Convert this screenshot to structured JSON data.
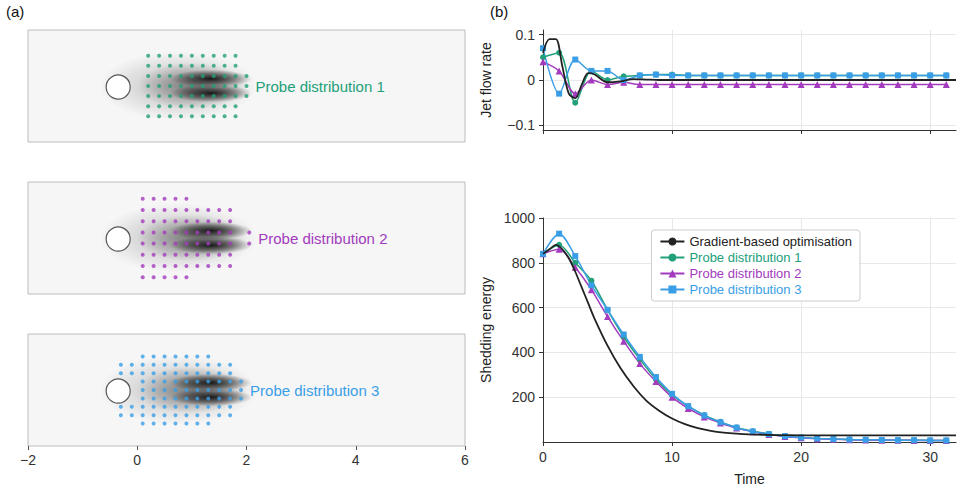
{
  "chart_data": [
    {
      "type": "scatter",
      "panel": "(a)",
      "xlim": [
        -2,
        6
      ],
      "xticks": [
        {
          "value": -2,
          "label": "−2"
        },
        0,
        2,
        4,
        6
      ],
      "ylim": [
        -1,
        1
      ],
      "tick_labels": "x",
      "grid": false,
      "cylinder": {
        "x": -0.35,
        "y": 0,
        "r": 0.22
      },
      "wake": [
        {
          "x": 0.75,
          "y": 0,
          "rx": 1.45,
          "ry": 0.62,
          "magnitude": 0.22
        },
        {
          "x": 1.0,
          "y": 0,
          "rx": 1.0,
          "ry": 0.42,
          "magnitude": 0.35
        },
        {
          "x": 1.35,
          "y": 0.13,
          "rx": 0.75,
          "ry": 0.16,
          "magnitude": 0.85
        },
        {
          "x": 1.35,
          "y": -0.13,
          "rx": 0.75,
          "ry": 0.16,
          "magnitude": 0.85
        }
      ],
      "series": [
        {
          "name": "Probe distribution 1",
          "color": "#22a07a",
          "marker": "circle",
          "probes": [
            {
              "y": -0.54,
              "x": [
                0.2,
                0.4,
                0.6,
                0.8,
                1.0,
                1.2,
                1.4,
                1.6,
                1.8
              ]
            },
            {
              "y": -0.36,
              "x": [
                0.2,
                0.4,
                0.6,
                0.8,
                1.0,
                1.2,
                1.4,
                1.6,
                1.8
              ]
            },
            {
              "y": -0.18,
              "x": [
                0.2,
                0.4,
                0.6,
                0.8,
                1.0,
                1.2,
                1.4,
                1.6,
                1.8,
                2.0
              ]
            },
            {
              "y": 0,
              "x": [
                0.2,
                0.4,
                0.6,
                0.8,
                1.0,
                1.2,
                1.4,
                1.6,
                1.8,
                2.0
              ]
            },
            {
              "y": 0.18,
              "x": [
                0.2,
                0.4,
                0.6,
                0.8,
                1.0,
                1.2,
                1.4,
                1.6,
                1.8,
                2.0
              ]
            },
            {
              "y": 0.36,
              "x": [
                0.2,
                0.4,
                0.6,
                0.8,
                1.0,
                1.2,
                1.4,
                1.6,
                1.8
              ]
            },
            {
              "y": 0.54,
              "x": [
                0.2,
                0.4,
                0.6,
                0.8,
                1.0,
                1.2,
                1.4,
                1.6,
                1.8
              ]
            }
          ]
        },
        {
          "name": "Probe distribution 2",
          "color": "#a23bbd",
          "marker": "circle",
          "probes": [
            {
              "y": -0.7,
              "x": [
                0.1,
                0.3,
                0.5,
                0.7,
                0.9
              ]
            },
            {
              "y": -0.5,
              "x": [
                0.1,
                0.3,
                0.5,
                0.7,
                0.9,
                1.1,
                1.3,
                1.5,
                1.7
              ]
            },
            {
              "y": -0.3,
              "x": [
                0.1,
                0.3,
                0.5,
                0.7,
                0.9,
                1.1,
                1.3,
                1.5,
                1.7
              ]
            },
            {
              "y": -0.1,
              "x": [
                0.1,
                0.3,
                0.5,
                0.7,
                0.9,
                1.1,
                1.3,
                1.5,
                1.7,
                2.05
              ]
            },
            {
              "y": 0.1,
              "x": [
                0.1,
                0.3,
                0.5,
                0.7,
                0.9,
                1.1,
                1.3,
                1.5,
                1.7,
                2.05
              ]
            },
            {
              "y": 0.3,
              "x": [
                0.1,
                0.3,
                0.5,
                0.7,
                0.9,
                1.1,
                1.3,
                1.5,
                1.7
              ]
            },
            {
              "y": 0.5,
              "x": [
                0.1,
                0.3,
                0.5,
                0.7,
                0.9,
                1.1,
                1.3,
                1.5,
                1.7
              ]
            },
            {
              "y": 0.7,
              "x": [
                0.1,
                0.3,
                0.5,
                0.7,
                0.9
              ]
            }
          ]
        },
        {
          "name": "Probe distribution 3",
          "color": "#3a9ee6",
          "marker": "circle",
          "probes": [
            {
              "y": -0.6,
              "x": [
                0.1,
                0.3,
                0.5,
                0.7,
                0.9,
                1.1,
                1.3
              ]
            },
            {
              "y": -0.45,
              "x": [
                -0.3,
                -0.1,
                0.1,
                0.3,
                0.5,
                0.7,
                0.9,
                1.1,
                1.3,
                1.5,
                1.7
              ]
            },
            {
              "y": -0.3,
              "x": [
                -0.3,
                -0.1,
                0.1,
                0.3,
                0.5,
                0.7,
                0.9,
                1.1,
                1.3,
                1.5,
                1.7
              ]
            },
            {
              "y": -0.15,
              "x": [
                0.1,
                0.3,
                0.5,
                0.7,
                0.9,
                1.1,
                1.3,
                1.5,
                1.7,
                1.9
              ]
            },
            {
              "y": 0,
              "x": [
                0.1,
                0.3,
                0.5,
                0.7,
                0.9,
                1.1,
                1.3,
                1.5,
                1.7,
                1.9
              ]
            },
            {
              "y": 0.15,
              "x": [
                0.1,
                0.3,
                0.5,
                0.7,
                0.9,
                1.1,
                1.3,
                1.5,
                1.7,
                1.9
              ]
            },
            {
              "y": 0.3,
              "x": [
                -0.3,
                -0.1,
                0.1,
                0.3,
                0.5,
                0.7,
                0.9,
                1.1,
                1.3,
                1.5,
                1.7
              ]
            },
            {
              "y": 0.45,
              "x": [
                -0.3,
                -0.1,
                0.1,
                0.3,
                0.5,
                0.7,
                0.9,
                1.1,
                1.3,
                1.5,
                1.7
              ]
            },
            {
              "y": 0.6,
              "x": [
                0.1,
                0.3,
                0.5,
                0.7,
                0.9,
                1.1,
                1.3
              ]
            }
          ]
        }
      ]
    },
    {
      "type": "line",
      "panel": "(b)",
      "xlabel": "Time",
      "xlim": [
        0,
        32
      ],
      "xticks": [
        0,
        10,
        20,
        30
      ],
      "grid": true,
      "legend": "upper right",
      "subplots": [
        {
          "ylabel": "Jet flow rate",
          "ylim": [
            -0.11,
            0.11
          ],
          "yticks": [
            {
              "value": -0.1,
              "label": "−0.1"
            },
            0,
            0.1
          ],
          "tick_labels": "y"
        },
        {
          "ylabel": "Shedding energy",
          "ylim": [
            0,
            1000
          ],
          "yticks": [
            200,
            400,
            600,
            800,
            1000
          ]
        }
      ],
      "series": [
        {
          "name": "Gradient-based optimisation",
          "color": "#222222",
          "marker": "none",
          "x": [
            0,
            0.5,
            1,
            1.5,
            2,
            2.5,
            3,
            3.5,
            4,
            5,
            6,
            7,
            8,
            9,
            10,
            11,
            12,
            13,
            14,
            15,
            16,
            18,
            20,
            22,
            24,
            26,
            28,
            30,
            32
          ],
          "values": {
            "Jet flow rate": [
              0.06,
              0.09,
              0.09,
              0.03,
              -0.03,
              -0.04,
              -0.01,
              0.015,
              0.012,
              -0.005,
              -0.003,
              0.002,
              0.001,
              0,
              0,
              0,
              0,
              0,
              0,
              0,
              0,
              0,
              0,
              0,
              0,
              0,
              0,
              0,
              0
            ],
            "Shedding energy": [
              840,
              860,
              880,
              860,
              820,
              760,
              690,
              620,
              550,
              430,
              330,
              250,
              185,
              140,
              105,
              80,
              62,
              50,
              42,
              37,
              34,
              31,
              30,
              30,
              30,
              30,
              30,
              30,
              30
            ]
          }
        },
        {
          "name": "Probe distribution 1",
          "color": "#22a07a",
          "marker": "circle",
          "x": [
            0,
            1.25,
            2.5,
            3.75,
            5,
            6.25,
            7.5,
            8.75,
            10,
            11.25,
            12.5,
            13.75,
            15,
            16.25,
            17.5,
            18.75,
            20,
            21.25,
            22.5,
            23.75,
            25,
            26.25,
            27.5,
            28.75,
            30,
            31.25
          ],
          "values": {
            "Jet flow rate": [
              0.05,
              0.06,
              -0.05,
              0.02,
              0,
              0.008,
              0.01,
              0.012,
              0.012,
              0.01,
              0.01,
              0.01,
              0.01,
              0.01,
              0.01,
              0.01,
              0.01,
              0.01,
              0.01,
              0.01,
              0.01,
              0.01,
              0.01,
              0.01,
              0.01,
              0.01
            ],
            "Shedding energy": [
              840,
              880,
              800,
              720,
              590,
              470,
              370,
              280,
              210,
              160,
              120,
              90,
              65,
              48,
              36,
              26,
              20,
              16,
              13,
              11,
              10,
              9,
              8,
              8,
              7,
              7
            ]
          }
        },
        {
          "name": "Probe distribution 2",
          "color": "#a23bbd",
          "marker": "triangle",
          "x": [
            0,
            1.25,
            2.5,
            3.75,
            5,
            6.25,
            7.5,
            8.75,
            10,
            11.25,
            12.5,
            13.75,
            15,
            16.25,
            17.5,
            18.75,
            20,
            21.25,
            22.5,
            23.75,
            25,
            26.25,
            27.5,
            28.75,
            30,
            31.25
          ],
          "values": {
            "Jet flow rate": [
              0.04,
              0.02,
              -0.03,
              0,
              -0.01,
              -0.005,
              -0.01,
              -0.01,
              -0.01,
              -0.01,
              -0.01,
              -0.01,
              -0.01,
              -0.01,
              -0.01,
              -0.01,
              -0.01,
              -0.01,
              -0.01,
              -0.01,
              -0.01,
              -0.01,
              -0.01,
              -0.01,
              -0.01,
              -0.01
            ],
            "Shedding energy": [
              840,
              860,
              780,
              680,
              560,
              450,
              350,
              270,
              200,
              150,
              112,
              85,
              62,
              46,
              34,
              25,
              19,
              15,
              12,
              10,
              9,
              8,
              8,
              7,
              7,
              7
            ]
          }
        },
        {
          "name": "Probe distribution 3",
          "color": "#3a9ee6",
          "marker": "square",
          "x": [
            0,
            1.25,
            2.5,
            3.75,
            5,
            6.25,
            7.5,
            8.75,
            10,
            11.25,
            12.5,
            13.75,
            15,
            16.25,
            17.5,
            18.75,
            20,
            21.25,
            22.5,
            23.75,
            25,
            26.25,
            27.5,
            28.75,
            30,
            31.25
          ],
          "values": {
            "Jet flow rate": [
              0.07,
              -0.03,
              0.045,
              0.02,
              0.02,
              0,
              0.01,
              0.012,
              0.01,
              0.01,
              0.01,
              0.01,
              0.01,
              0.01,
              0.01,
              0.01,
              0.01,
              0.01,
              0.01,
              0.01,
              0.01,
              0.01,
              0.01,
              0.01,
              0.01,
              0.01
            ],
            "Shedding energy": [
              840,
              930,
              830,
              700,
              590,
              480,
              380,
              290,
              215,
              160,
              118,
              88,
              64,
              47,
              35,
              26,
              20,
              16,
              13,
              11,
              10,
              9,
              8,
              8,
              7,
              7
            ]
          }
        }
      ]
    }
  ]
}
